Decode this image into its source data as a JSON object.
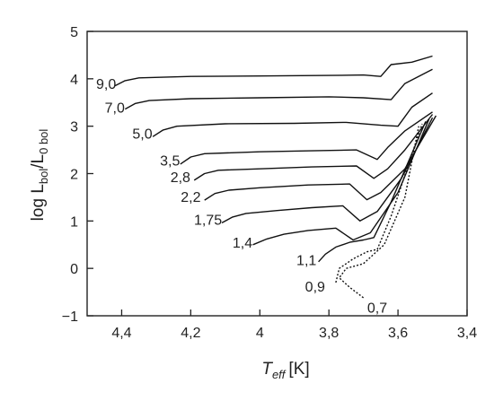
{
  "chart_data": {
    "type": "line",
    "title": "",
    "xlabel": {
      "main": "T",
      "sub": "eff",
      "unit": "[K]"
    },
    "ylabel": {
      "pre": "log L",
      "sub1": "bol",
      "mid": "/L",
      "sub2": "0 bol"
    },
    "xlim": [
      4.5,
      3.4
    ],
    "ylim": [
      -1,
      5
    ],
    "x_reversed": true,
    "grid": false,
    "x_ticks": [
      {
        "v": 4.4,
        "label": "4,4"
      },
      {
        "v": 4.2,
        "label": "4,2"
      },
      {
        "v": 4.0,
        "label": "4"
      },
      {
        "v": 3.8,
        "label": "3,8"
      },
      {
        "v": 3.6,
        "label": "3,6"
      },
      {
        "v": 3.4,
        "label": "3,4"
      }
    ],
    "y_ticks": [
      {
        "v": -1,
        "label": "−1"
      },
      {
        "v": 0,
        "label": "0"
      },
      {
        "v": 1,
        "label": "1"
      },
      {
        "v": 2,
        "label": "2"
      },
      {
        "v": 3,
        "label": "3"
      },
      {
        "v": 4,
        "label": "4"
      },
      {
        "v": 5,
        "label": "5"
      }
    ],
    "series": [
      {
        "name": "9,0",
        "label_at": [
          4.445,
          3.9
        ],
        "style": "solid",
        "points": [
          [
            4.42,
            3.85
          ],
          [
            4.39,
            3.96
          ],
          [
            4.35,
            4.02
          ],
          [
            4.2,
            4.05
          ],
          [
            4.0,
            4.06
          ],
          [
            3.8,
            4.07
          ],
          [
            3.7,
            4.08
          ],
          [
            3.65,
            4.05
          ],
          [
            3.62,
            4.3
          ],
          [
            3.56,
            4.35
          ],
          [
            3.5,
            4.48
          ]
        ]
      },
      {
        "name": "7,0",
        "label_at": [
          4.42,
          3.4
        ],
        "style": "solid",
        "points": [
          [
            4.39,
            3.36
          ],
          [
            4.36,
            3.48
          ],
          [
            4.32,
            3.54
          ],
          [
            4.2,
            3.58
          ],
          [
            4.0,
            3.6
          ],
          [
            3.8,
            3.62
          ],
          [
            3.7,
            3.6
          ],
          [
            3.62,
            3.56
          ],
          [
            3.58,
            3.9
          ],
          [
            3.5,
            4.2
          ]
        ]
      },
      {
        "name": "5,0",
        "label_at": [
          4.34,
          2.85
        ],
        "style": "solid",
        "points": [
          [
            4.31,
            2.78
          ],
          [
            4.28,
            2.92
          ],
          [
            4.24,
            3.0
          ],
          [
            4.1,
            3.05
          ],
          [
            3.9,
            3.06
          ],
          [
            3.75,
            3.08
          ],
          [
            3.65,
            3.02
          ],
          [
            3.6,
            3.0
          ],
          [
            3.56,
            3.4
          ],
          [
            3.5,
            3.7
          ]
        ]
      },
      {
        "name": "3,5",
        "label_at": [
          4.26,
          2.28
        ],
        "style": "solid",
        "points": [
          [
            4.23,
            2.2
          ],
          [
            4.2,
            2.35
          ],
          [
            4.16,
            2.42
          ],
          [
            4.0,
            2.46
          ],
          [
            3.85,
            2.48
          ],
          [
            3.72,
            2.5
          ],
          [
            3.66,
            2.3
          ],
          [
            3.63,
            2.55
          ],
          [
            3.58,
            2.9
          ],
          [
            3.5,
            3.3
          ]
        ]
      },
      {
        "name": "2,8",
        "label_at": [
          4.23,
          1.93
        ],
        "style": "solid",
        "points": [
          [
            4.19,
            1.86
          ],
          [
            4.16,
            2.0
          ],
          [
            4.12,
            2.07
          ],
          [
            4.0,
            2.1
          ],
          [
            3.85,
            2.14
          ],
          [
            3.72,
            2.16
          ],
          [
            3.67,
            1.9
          ],
          [
            3.63,
            2.1
          ],
          [
            3.58,
            2.5
          ],
          [
            3.5,
            3.25
          ]
        ]
      },
      {
        "name": "2,2",
        "label_at": [
          4.2,
          1.52
        ],
        "style": "solid",
        "points": [
          [
            4.16,
            1.44
          ],
          [
            4.13,
            1.58
          ],
          [
            4.09,
            1.65
          ],
          [
            4.0,
            1.7
          ],
          [
            3.86,
            1.76
          ],
          [
            3.74,
            1.78
          ],
          [
            3.69,
            1.45
          ],
          [
            3.65,
            1.6
          ],
          [
            3.58,
            2.1
          ],
          [
            3.49,
            3.22
          ]
        ]
      },
      {
        "name": "1,75",
        "label_at": [
          4.15,
          1.03
        ],
        "style": "solid",
        "points": [
          [
            4.11,
            0.96
          ],
          [
            4.08,
            1.08
          ],
          [
            4.04,
            1.16
          ],
          [
            3.95,
            1.22
          ],
          [
            3.85,
            1.28
          ],
          [
            3.76,
            1.32
          ],
          [
            3.71,
            1.0
          ],
          [
            3.66,
            1.2
          ],
          [
            3.59,
            1.9
          ],
          [
            3.5,
            3.18
          ]
        ]
      },
      {
        "name": "1,4",
        "label_at": [
          4.05,
          0.55
        ],
        "style": "solid",
        "points": [
          [
            4.02,
            0.5
          ],
          [
            3.98,
            0.62
          ],
          [
            3.93,
            0.72
          ],
          [
            3.86,
            0.8
          ],
          [
            3.78,
            0.85
          ],
          [
            3.73,
            0.6
          ],
          [
            3.68,
            0.75
          ],
          [
            3.6,
            1.6
          ],
          [
            3.51,
            3.15
          ]
        ]
      },
      {
        "name": "1,1",
        "label_at": [
          3.865,
          0.18
        ],
        "style": "solid",
        "points": [
          [
            3.83,
            0.14
          ],
          [
            3.81,
            0.3
          ],
          [
            3.78,
            0.45
          ],
          [
            3.74,
            0.55
          ],
          [
            3.7,
            0.6
          ],
          [
            3.67,
            0.65
          ],
          [
            3.62,
            1.4
          ],
          [
            3.52,
            3.1
          ]
        ]
      },
      {
        "name": "0,9",
        "label_at": [
          3.84,
          -0.38
        ],
        "style": "dotted",
        "points": [
          [
            3.78,
            -0.3
          ],
          [
            3.77,
            0.0
          ],
          [
            3.73,
            0.2
          ],
          [
            3.69,
            0.35
          ],
          [
            3.66,
            0.4
          ],
          [
            3.62,
            1.1
          ],
          [
            3.53,
            3.05
          ]
        ]
      },
      {
        "name": "0,7",
        "label_at": [
          3.66,
          -0.82
        ],
        "style": "dotted",
        "points": [
          [
            3.7,
            -0.62
          ],
          [
            3.74,
            -0.4
          ],
          [
            3.77,
            -0.2
          ],
          [
            3.75,
            0.0
          ],
          [
            3.7,
            0.1
          ],
          [
            3.64,
            0.5
          ],
          [
            3.58,
            1.5
          ],
          [
            3.54,
            3.0
          ]
        ]
      }
    ]
  }
}
